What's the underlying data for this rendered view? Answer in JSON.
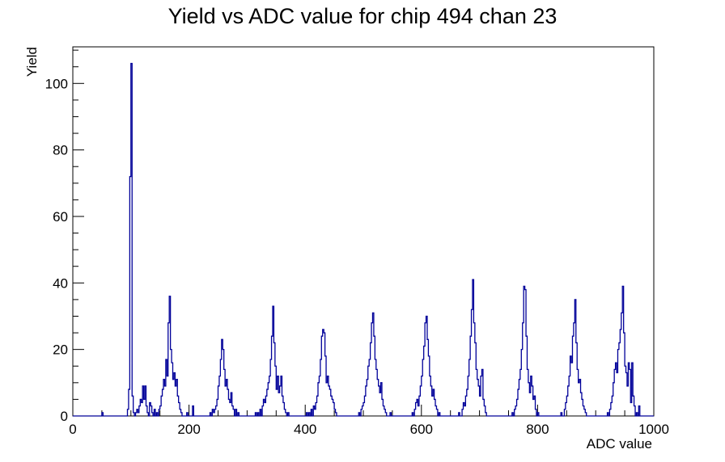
{
  "chart_data": {
    "type": "histogram",
    "title": "Yield vs ADC value for chip 494 chan 23",
    "xlabel": "ADC value",
    "ylabel": "Yield",
    "xlim": [
      0,
      1000
    ],
    "ylim": [
      0,
      111
    ],
    "x_ticks": [
      0,
      200,
      400,
      600,
      800,
      1000
    ],
    "y_ticks": [
      0,
      20,
      40,
      60,
      80,
      100
    ],
    "grid": false,
    "legend": "none",
    "bin_width": 2,
    "line_color": "#000099",
    "series": [
      {
        "values": [
          [
            50,
            1
          ],
          [
            94,
            2
          ],
          [
            96,
            8
          ],
          [
            98,
            72
          ],
          [
            99,
            98
          ],
          [
            100,
            106
          ],
          [
            101,
            40
          ],
          [
            102,
            6
          ],
          [
            104,
            1
          ],
          [
            108,
            1
          ],
          [
            110,
            2
          ],
          [
            112,
            1
          ],
          [
            114,
            3
          ],
          [
            116,
            5
          ],
          [
            118,
            4
          ],
          [
            120,
            9
          ],
          [
            122,
            5
          ],
          [
            124,
            9
          ],
          [
            126,
            3
          ],
          [
            128,
            1
          ],
          [
            132,
            4
          ],
          [
            134,
            3
          ],
          [
            136,
            1
          ],
          [
            140,
            2
          ],
          [
            144,
            1
          ],
          [
            148,
            2
          ],
          [
            150,
            3
          ],
          [
            152,
            6
          ],
          [
            154,
            8
          ],
          [
            156,
            11
          ],
          [
            158,
            9
          ],
          [
            160,
            17
          ],
          [
            162,
            12
          ],
          [
            164,
            28
          ],
          [
            166,
            36
          ],
          [
            168,
            20
          ],
          [
            170,
            16
          ],
          [
            172,
            11
          ],
          [
            174,
            13
          ],
          [
            176,
            9
          ],
          [
            178,
            11
          ],
          [
            180,
            6
          ],
          [
            182,
            4
          ],
          [
            184,
            2
          ],
          [
            186,
            1
          ],
          [
            196,
            1
          ],
          [
            206,
            3
          ],
          [
            236,
            1
          ],
          [
            240,
            2
          ],
          [
            242,
            1
          ],
          [
            244,
            2
          ],
          [
            246,
            3
          ],
          [
            248,
            5
          ],
          [
            250,
            9
          ],
          [
            252,
            12
          ],
          [
            254,
            17
          ],
          [
            256,
            23
          ],
          [
            258,
            20
          ],
          [
            260,
            14
          ],
          [
            262,
            9
          ],
          [
            264,
            11
          ],
          [
            266,
            8
          ],
          [
            268,
            5
          ],
          [
            270,
            4
          ],
          [
            272,
            7
          ],
          [
            274,
            3
          ],
          [
            276,
            2
          ],
          [
            280,
            2
          ],
          [
            284,
            1
          ],
          [
            314,
            1
          ],
          [
            318,
            1
          ],
          [
            322,
            2
          ],
          [
            326,
            3
          ],
          [
            328,
            5
          ],
          [
            330,
            4
          ],
          [
            332,
            6
          ],
          [
            334,
            8
          ],
          [
            336,
            10
          ],
          [
            338,
            12
          ],
          [
            340,
            17
          ],
          [
            342,
            24
          ],
          [
            344,
            33
          ],
          [
            346,
            22
          ],
          [
            348,
            15
          ],
          [
            350,
            8
          ],
          [
            352,
            12
          ],
          [
            354,
            7
          ],
          [
            356,
            9
          ],
          [
            358,
            12
          ],
          [
            360,
            6
          ],
          [
            362,
            4
          ],
          [
            364,
            2
          ],
          [
            366,
            1
          ],
          [
            370,
            1
          ],
          [
            402,
            1
          ],
          [
            406,
            1
          ],
          [
            410,
            2
          ],
          [
            414,
            3
          ],
          [
            416,
            2
          ],
          [
            418,
            4
          ],
          [
            420,
            6
          ],
          [
            422,
            10
          ],
          [
            424,
            12
          ],
          [
            426,
            17
          ],
          [
            428,
            24
          ],
          [
            430,
            26
          ],
          [
            432,
            25
          ],
          [
            434,
            18
          ],
          [
            436,
            10
          ],
          [
            438,
            12
          ],
          [
            440,
            9
          ],
          [
            442,
            8
          ],
          [
            444,
            6
          ],
          [
            446,
            5
          ],
          [
            448,
            4
          ],
          [
            450,
            2
          ],
          [
            452,
            1
          ],
          [
            492,
            1
          ],
          [
            496,
            2
          ],
          [
            498,
            3
          ],
          [
            500,
            4
          ],
          [
            502,
            6
          ],
          [
            504,
            9
          ],
          [
            506,
            11
          ],
          [
            508,
            15
          ],
          [
            510,
            17
          ],
          [
            512,
            22
          ],
          [
            514,
            28
          ],
          [
            516,
            31
          ],
          [
            518,
            24
          ],
          [
            520,
            17
          ],
          [
            522,
            14
          ],
          [
            524,
            11
          ],
          [
            526,
            9
          ],
          [
            528,
            7
          ],
          [
            530,
            10
          ],
          [
            532,
            5
          ],
          [
            534,
            3
          ],
          [
            536,
            2
          ],
          [
            538,
            1
          ],
          [
            546,
            1
          ],
          [
            584,
            1
          ],
          [
            588,
            2
          ],
          [
            590,
            4
          ],
          [
            592,
            5
          ],
          [
            594,
            3
          ],
          [
            596,
            6
          ],
          [
            598,
            9
          ],
          [
            600,
            12
          ],
          [
            602,
            17
          ],
          [
            604,
            21
          ],
          [
            606,
            28
          ],
          [
            608,
            30
          ],
          [
            610,
            23
          ],
          [
            612,
            18
          ],
          [
            614,
            12
          ],
          [
            616,
            9
          ],
          [
            618,
            6
          ],
          [
            620,
            8
          ],
          [
            622,
            5
          ],
          [
            624,
            3
          ],
          [
            626,
            2
          ],
          [
            630,
            1
          ],
          [
            664,
            1
          ],
          [
            670,
            2
          ],
          [
            672,
            4
          ],
          [
            674,
            3
          ],
          [
            676,
            6
          ],
          [
            678,
            8
          ],
          [
            680,
            12
          ],
          [
            682,
            17
          ],
          [
            684,
            24
          ],
          [
            686,
            32
          ],
          [
            688,
            41
          ],
          [
            690,
            28
          ],
          [
            692,
            22
          ],
          [
            694,
            14
          ],
          [
            696,
            11
          ],
          [
            698,
            9
          ],
          [
            700,
            6
          ],
          [
            702,
            12
          ],
          [
            704,
            14
          ],
          [
            706,
            5
          ],
          [
            708,
            3
          ],
          [
            710,
            1
          ],
          [
            756,
            1
          ],
          [
            760,
            2
          ],
          [
            762,
            3
          ],
          [
            764,
            5
          ],
          [
            766,
            8
          ],
          [
            768,
            11
          ],
          [
            770,
            14
          ],
          [
            772,
            20
          ],
          [
            774,
            28
          ],
          [
            776,
            39
          ],
          [
            778,
            38
          ],
          [
            780,
            24
          ],
          [
            782,
            14
          ],
          [
            784,
            10
          ],
          [
            786,
            7
          ],
          [
            788,
            12
          ],
          [
            790,
            9
          ],
          [
            792,
            5
          ],
          [
            794,
            6
          ],
          [
            796,
            2
          ],
          [
            800,
            1
          ],
          [
            840,
            1
          ],
          [
            846,
            2
          ],
          [
            848,
            4
          ],
          [
            850,
            6
          ],
          [
            852,
            9
          ],
          [
            854,
            12
          ],
          [
            856,
            18
          ],
          [
            858,
            16
          ],
          [
            860,
            24
          ],
          [
            862,
            28
          ],
          [
            864,
            35
          ],
          [
            866,
            22
          ],
          [
            868,
            14
          ],
          [
            870,
            10
          ],
          [
            872,
            11
          ],
          [
            874,
            7
          ],
          [
            876,
            5
          ],
          [
            878,
            3
          ],
          [
            880,
            2
          ],
          [
            882,
            1
          ],
          [
            920,
            1
          ],
          [
            924,
            2
          ],
          [
            926,
            4
          ],
          [
            928,
            6
          ],
          [
            930,
            10
          ],
          [
            932,
            14
          ],
          [
            934,
            16
          ],
          [
            936,
            13
          ],
          [
            938,
            20
          ],
          [
            940,
            22
          ],
          [
            942,
            26
          ],
          [
            944,
            31
          ],
          [
            946,
            39
          ],
          [
            948,
            25
          ],
          [
            950,
            15
          ],
          [
            952,
            13
          ],
          [
            954,
            9
          ],
          [
            956,
            16
          ],
          [
            958,
            14
          ],
          [
            960,
            4
          ],
          [
            962,
            16
          ],
          [
            964,
            6
          ],
          [
            966,
            3
          ],
          [
            970,
            1
          ],
          [
            974,
            3
          ]
        ]
      }
    ]
  }
}
